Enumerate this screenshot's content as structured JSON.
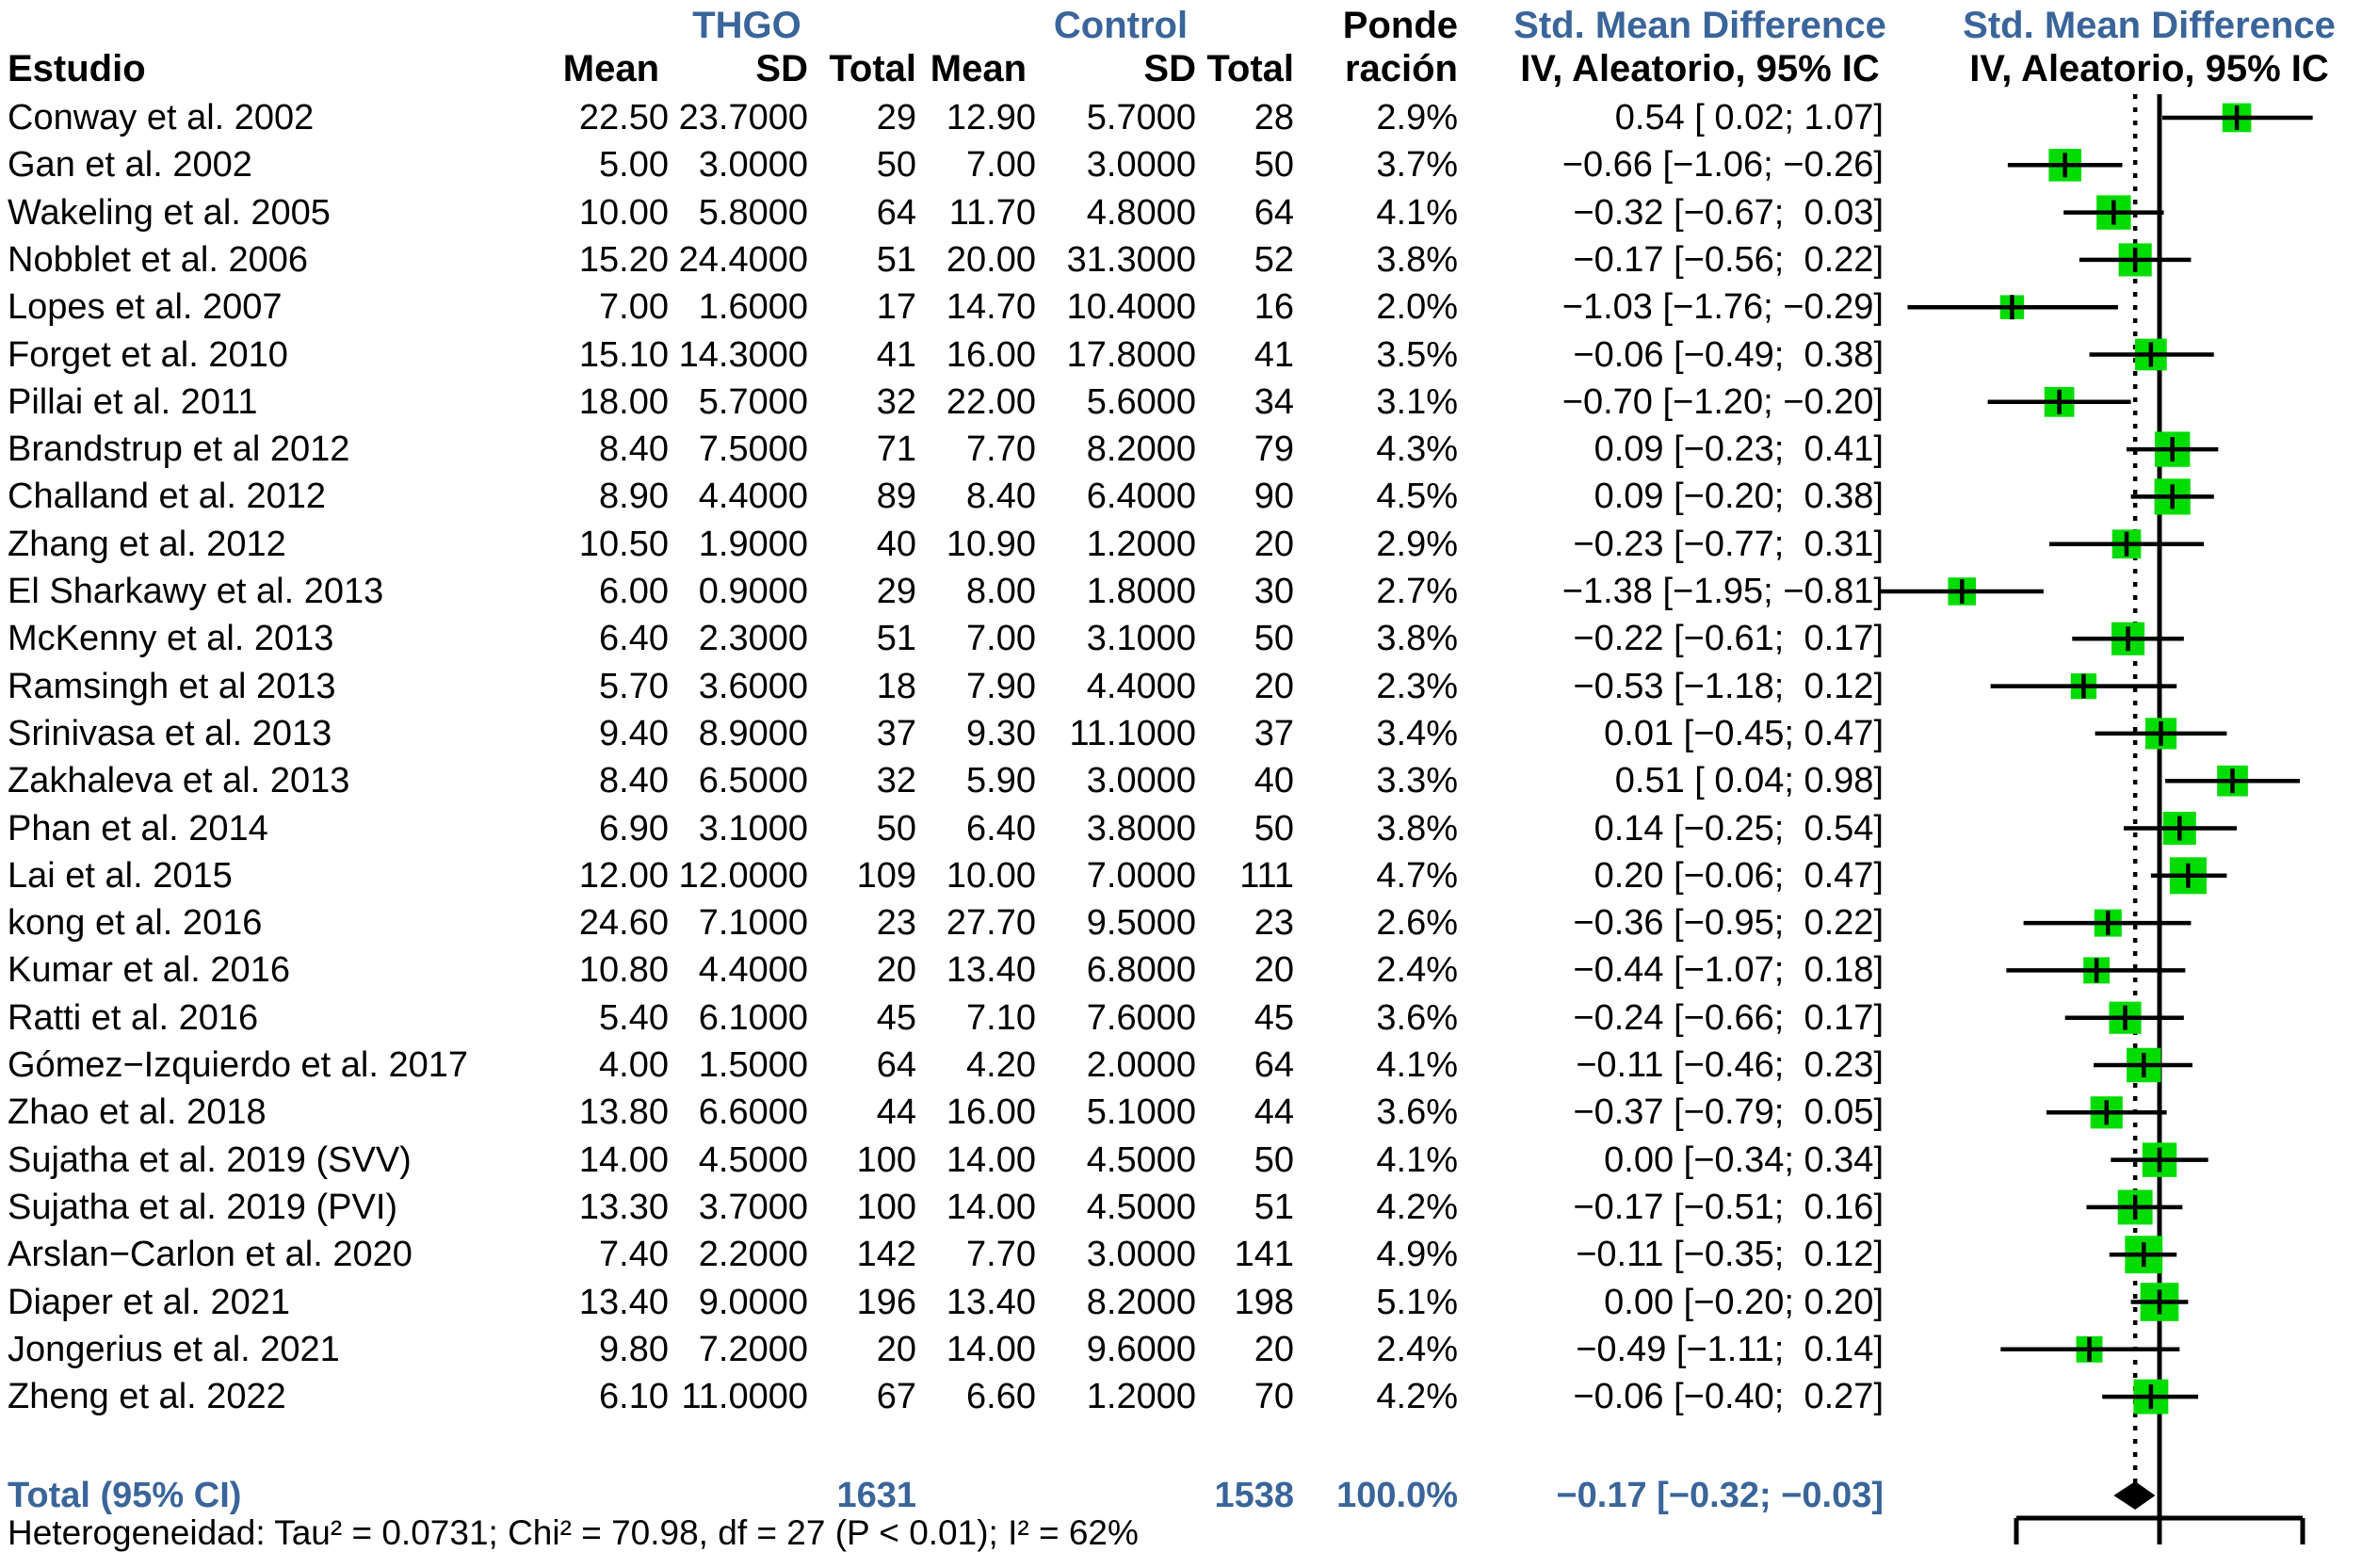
{
  "colors": {
    "accent_blue": "#3a659a",
    "marker_green": "#00dc00",
    "line_black": "#000000"
  },
  "header": {
    "study_col": "Estudio",
    "group1": "THGO",
    "group2": "Control",
    "weight_line1": "Ponde",
    "weight_line2": "ración",
    "smd": "Std. Mean Difference",
    "smd_sub": "IV, Aleatorio, 95% IC",
    "mean": "Mean",
    "sd": "SD",
    "total": "Total"
  },
  "chart_data": {
    "type": "forest",
    "title": "Std. Mean Difference, IV, Aleatorio, 95% IC",
    "x_axis": {
      "min": -1,
      "max": 1,
      "zero_line": 0,
      "pooled_line": -0.17,
      "tick_labels_visible": false
    },
    "legend_position": "none",
    "grid": false,
    "studies": [
      {
        "name": "Conway et al. 2002",
        "m1": "22.50",
        "sd1": "23.7000",
        "n1": "29",
        "m2": "12.90",
        "sd2": "5.7000",
        "n2": "28",
        "w": "2.9%",
        "ci": "0.54 [ 0.02; 1.07]",
        "e": 0.54,
        "lo": 0.02,
        "hi": 1.07,
        "wt": 2.9
      },
      {
        "name": "Gan et al. 2002",
        "m1": "5.00",
        "sd1": "3.0000",
        "n1": "50",
        "m2": "7.00",
        "sd2": "3.0000",
        "n2": "50",
        "w": "3.7%",
        "ci": "−0.66 [−1.06; −0.26]",
        "e": -0.66,
        "lo": -1.06,
        "hi": -0.26,
        "wt": 3.7
      },
      {
        "name": "Wakeling et al. 2005",
        "m1": "10.00",
        "sd1": "5.8000",
        "n1": "64",
        "m2": "11.70",
        "sd2": "4.8000",
        "n2": "64",
        "w": "4.1%",
        "ci": "−0.32 [−0.67;  0.03]",
        "e": -0.32,
        "lo": -0.67,
        "hi": 0.03,
        "wt": 4.1
      },
      {
        "name": "Nobblet et al. 2006",
        "m1": "15.20",
        "sd1": "24.4000",
        "n1": "51",
        "m2": "20.00",
        "sd2": "31.3000",
        "n2": "52",
        "w": "3.8%",
        "ci": "−0.17 [−0.56;  0.22]",
        "e": -0.17,
        "lo": -0.56,
        "hi": 0.22,
        "wt": 3.8
      },
      {
        "name": "Lopes et al. 2007",
        "m1": "7.00",
        "sd1": "1.6000",
        "n1": "17",
        "m2": "14.70",
        "sd2": "10.4000",
        "n2": "16",
        "w": "2.0%",
        "ci": "−1.03 [−1.76; −0.29]",
        "e": -1.03,
        "lo": -1.76,
        "hi": -0.29,
        "wt": 2.0
      },
      {
        "name": "Forget et al. 2010",
        "m1": "15.10",
        "sd1": "14.3000",
        "n1": "41",
        "m2": "16.00",
        "sd2": "17.8000",
        "n2": "41",
        "w": "3.5%",
        "ci": "−0.06 [−0.49;  0.38]",
        "e": -0.06,
        "lo": -0.49,
        "hi": 0.38,
        "wt": 3.5
      },
      {
        "name": "Pillai et al. 2011",
        "m1": "18.00",
        "sd1": "5.7000",
        "n1": "32",
        "m2": "22.00",
        "sd2": "5.6000",
        "n2": "34",
        "w": "3.1%",
        "ci": "−0.70 [−1.20; −0.20]",
        "e": -0.7,
        "lo": -1.2,
        "hi": -0.2,
        "wt": 3.1
      },
      {
        "name": "Brandstrup et al 2012",
        "m1": "8.40",
        "sd1": "7.5000",
        "n1": "71",
        "m2": "7.70",
        "sd2": "8.2000",
        "n2": "79",
        "w": "4.3%",
        "ci": "0.09 [−0.23;  0.41]",
        "e": 0.09,
        "lo": -0.23,
        "hi": 0.41,
        "wt": 4.3
      },
      {
        "name": "Challand et al. 2012",
        "m1": "8.90",
        "sd1": "4.4000",
        "n1": "89",
        "m2": "8.40",
        "sd2": "6.4000",
        "n2": "90",
        "w": "4.5%",
        "ci": "0.09 [−0.20;  0.38]",
        "e": 0.09,
        "lo": -0.2,
        "hi": 0.38,
        "wt": 4.5
      },
      {
        "name": "Zhang et al. 2012",
        "m1": "10.50",
        "sd1": "1.9000",
        "n1": "40",
        "m2": "10.90",
        "sd2": "1.2000",
        "n2": "20",
        "w": "2.9%",
        "ci": "−0.23 [−0.77;  0.31]",
        "e": -0.23,
        "lo": -0.77,
        "hi": 0.31,
        "wt": 2.9
      },
      {
        "name": "El Sharkawy et al. 2013",
        "m1": "6.00",
        "sd1": "0.9000",
        "n1": "29",
        "m2": "8.00",
        "sd2": "1.8000",
        "n2": "30",
        "w": "2.7%",
        "ci": "−1.38 [−1.95; −0.81]",
        "e": -1.38,
        "lo": -1.95,
        "hi": -0.81,
        "wt": 2.7
      },
      {
        "name": "McKenny et al. 2013",
        "m1": "6.40",
        "sd1": "2.3000",
        "n1": "51",
        "m2": "7.00",
        "sd2": "3.1000",
        "n2": "50",
        "w": "3.8%",
        "ci": "−0.22 [−0.61;  0.17]",
        "e": -0.22,
        "lo": -0.61,
        "hi": 0.17,
        "wt": 3.8
      },
      {
        "name": "Ramsingh et al 2013",
        "m1": "5.70",
        "sd1": "3.6000",
        "n1": "18",
        "m2": "7.90",
        "sd2": "4.4000",
        "n2": "20",
        "w": "2.3%",
        "ci": "−0.53 [−1.18;  0.12]",
        "e": -0.53,
        "lo": -1.18,
        "hi": 0.12,
        "wt": 2.3
      },
      {
        "name": "Srinivasa et al. 2013",
        "m1": "9.40",
        "sd1": "8.9000",
        "n1": "37",
        "m2": "9.30",
        "sd2": "11.1000",
        "n2": "37",
        "w": "3.4%",
        "ci": "0.01 [−0.45; 0.47]",
        "e": 0.01,
        "lo": -0.45,
        "hi": 0.47,
        "wt": 3.4
      },
      {
        "name": "Zakhaleva et al. 2013",
        "m1": "8.40",
        "sd1": "6.5000",
        "n1": "32",
        "m2": "5.90",
        "sd2": "3.0000",
        "n2": "40",
        "w": "3.3%",
        "ci": "0.51 [ 0.04; 0.98]",
        "e": 0.51,
        "lo": 0.04,
        "hi": 0.98,
        "wt": 3.3
      },
      {
        "name": "Phan et al. 2014",
        "m1": "6.90",
        "sd1": "3.1000",
        "n1": "50",
        "m2": "6.40",
        "sd2": "3.8000",
        "n2": "50",
        "w": "3.8%",
        "ci": "0.14 [−0.25;  0.54]",
        "e": 0.14,
        "lo": -0.25,
        "hi": 0.54,
        "wt": 3.8
      },
      {
        "name": "Lai et al. 2015",
        "m1": "12.00",
        "sd1": "12.0000",
        "n1": "109",
        "m2": "10.00",
        "sd2": "7.0000",
        "n2": "111",
        "w": "4.7%",
        "ci": "0.20 [−0.06;  0.47]",
        "e": 0.2,
        "lo": -0.06,
        "hi": 0.47,
        "wt": 4.7
      },
      {
        "name": "kong et al. 2016",
        "m1": "24.60",
        "sd1": "7.1000",
        "n1": "23",
        "m2": "27.70",
        "sd2": "9.5000",
        "n2": "23",
        "w": "2.6%",
        "ci": "−0.36 [−0.95;  0.22]",
        "e": -0.36,
        "lo": -0.95,
        "hi": 0.22,
        "wt": 2.6
      },
      {
        "name": "Kumar et al. 2016",
        "m1": "10.80",
        "sd1": "4.4000",
        "n1": "20",
        "m2": "13.40",
        "sd2": "6.8000",
        "n2": "20",
        "w": "2.4%",
        "ci": "−0.44 [−1.07;  0.18]",
        "e": -0.44,
        "lo": -1.07,
        "hi": 0.18,
        "wt": 2.4
      },
      {
        "name": "Ratti et al. 2016",
        "m1": "5.40",
        "sd1": "6.1000",
        "n1": "45",
        "m2": "7.10",
        "sd2": "7.6000",
        "n2": "45",
        "w": "3.6%",
        "ci": "−0.24 [−0.66;  0.17]",
        "e": -0.24,
        "lo": -0.66,
        "hi": 0.17,
        "wt": 3.6
      },
      {
        "name": "Gómez−Izquierdo et al. 2017",
        "m1": "4.00",
        "sd1": "1.5000",
        "n1": "64",
        "m2": "4.20",
        "sd2": "2.0000",
        "n2": "64",
        "w": "4.1%",
        "ci": "−0.11 [−0.46;  0.23]",
        "e": -0.11,
        "lo": -0.46,
        "hi": 0.23,
        "wt": 4.1
      },
      {
        "name": "Zhao et al. 2018",
        "m1": "13.80",
        "sd1": "6.6000",
        "n1": "44",
        "m2": "16.00",
        "sd2": "5.1000",
        "n2": "44",
        "w": "3.6%",
        "ci": "−0.37 [−0.79;  0.05]",
        "e": -0.37,
        "lo": -0.79,
        "hi": 0.05,
        "wt": 3.6
      },
      {
        "name": "Sujatha et al. 2019 (SVV)",
        "m1": "14.00",
        "sd1": "4.5000",
        "n1": "100",
        "m2": "14.00",
        "sd2": "4.5000",
        "n2": "50",
        "w": "4.1%",
        "ci": "0.00 [−0.34; 0.34]",
        "e": 0.0,
        "lo": -0.34,
        "hi": 0.34,
        "wt": 4.1
      },
      {
        "name": "Sujatha et al. 2019 (PVI)",
        "m1": "13.30",
        "sd1": "3.7000",
        "n1": "100",
        "m2": "14.00",
        "sd2": "4.5000",
        "n2": "51",
        "w": "4.2%",
        "ci": "−0.17 [−0.51;  0.16]",
        "e": -0.17,
        "lo": -0.51,
        "hi": 0.16,
        "wt": 4.2
      },
      {
        "name": "Arslan−Carlon et al. 2020",
        "m1": "7.40",
        "sd1": "2.2000",
        "n1": "142",
        "m2": "7.70",
        "sd2": "3.0000",
        "n2": "141",
        "w": "4.9%",
        "ci": "−0.11 [−0.35;  0.12]",
        "e": -0.11,
        "lo": -0.35,
        "hi": 0.12,
        "wt": 4.9
      },
      {
        "name": "Diaper et al. 2021",
        "m1": "13.40",
        "sd1": "9.0000",
        "n1": "196",
        "m2": "13.40",
        "sd2": "8.2000",
        "n2": "198",
        "w": "5.1%",
        "ci": "0.00 [−0.20; 0.20]",
        "e": 0.0,
        "lo": -0.2,
        "hi": 0.2,
        "wt": 5.1
      },
      {
        "name": "Jongerius et al. 2021",
        "m1": "9.80",
        "sd1": "7.2000",
        "n1": "20",
        "m2": "14.00",
        "sd2": "9.6000",
        "n2": "20",
        "w": "2.4%",
        "ci": "−0.49 [−1.11;  0.14]",
        "e": -0.49,
        "lo": -1.11,
        "hi": 0.14,
        "wt": 2.4
      },
      {
        "name": "Zheng et al. 2022",
        "m1": "6.10",
        "sd1": "11.0000",
        "n1": "67",
        "m2": "6.60",
        "sd2": "1.2000",
        "n2": "70",
        "w": "4.2%",
        "ci": "−0.06 [−0.40;  0.27]",
        "e": -0.06,
        "lo": -0.4,
        "hi": 0.27,
        "wt": 4.2
      }
    ],
    "total": {
      "label": "Total (95% CI)",
      "n1": "1631",
      "n2": "1538",
      "w": "100.0%",
      "ci": "−0.17 [−0.32; −0.03]",
      "e": -0.17,
      "lo": -0.32,
      "hi": -0.03
    },
    "heterogeneity": "Heterogeneidad: Tau² = 0.0731; Chi² = 70.98, df = 27 (P < 0.01); I² = 62%"
  }
}
